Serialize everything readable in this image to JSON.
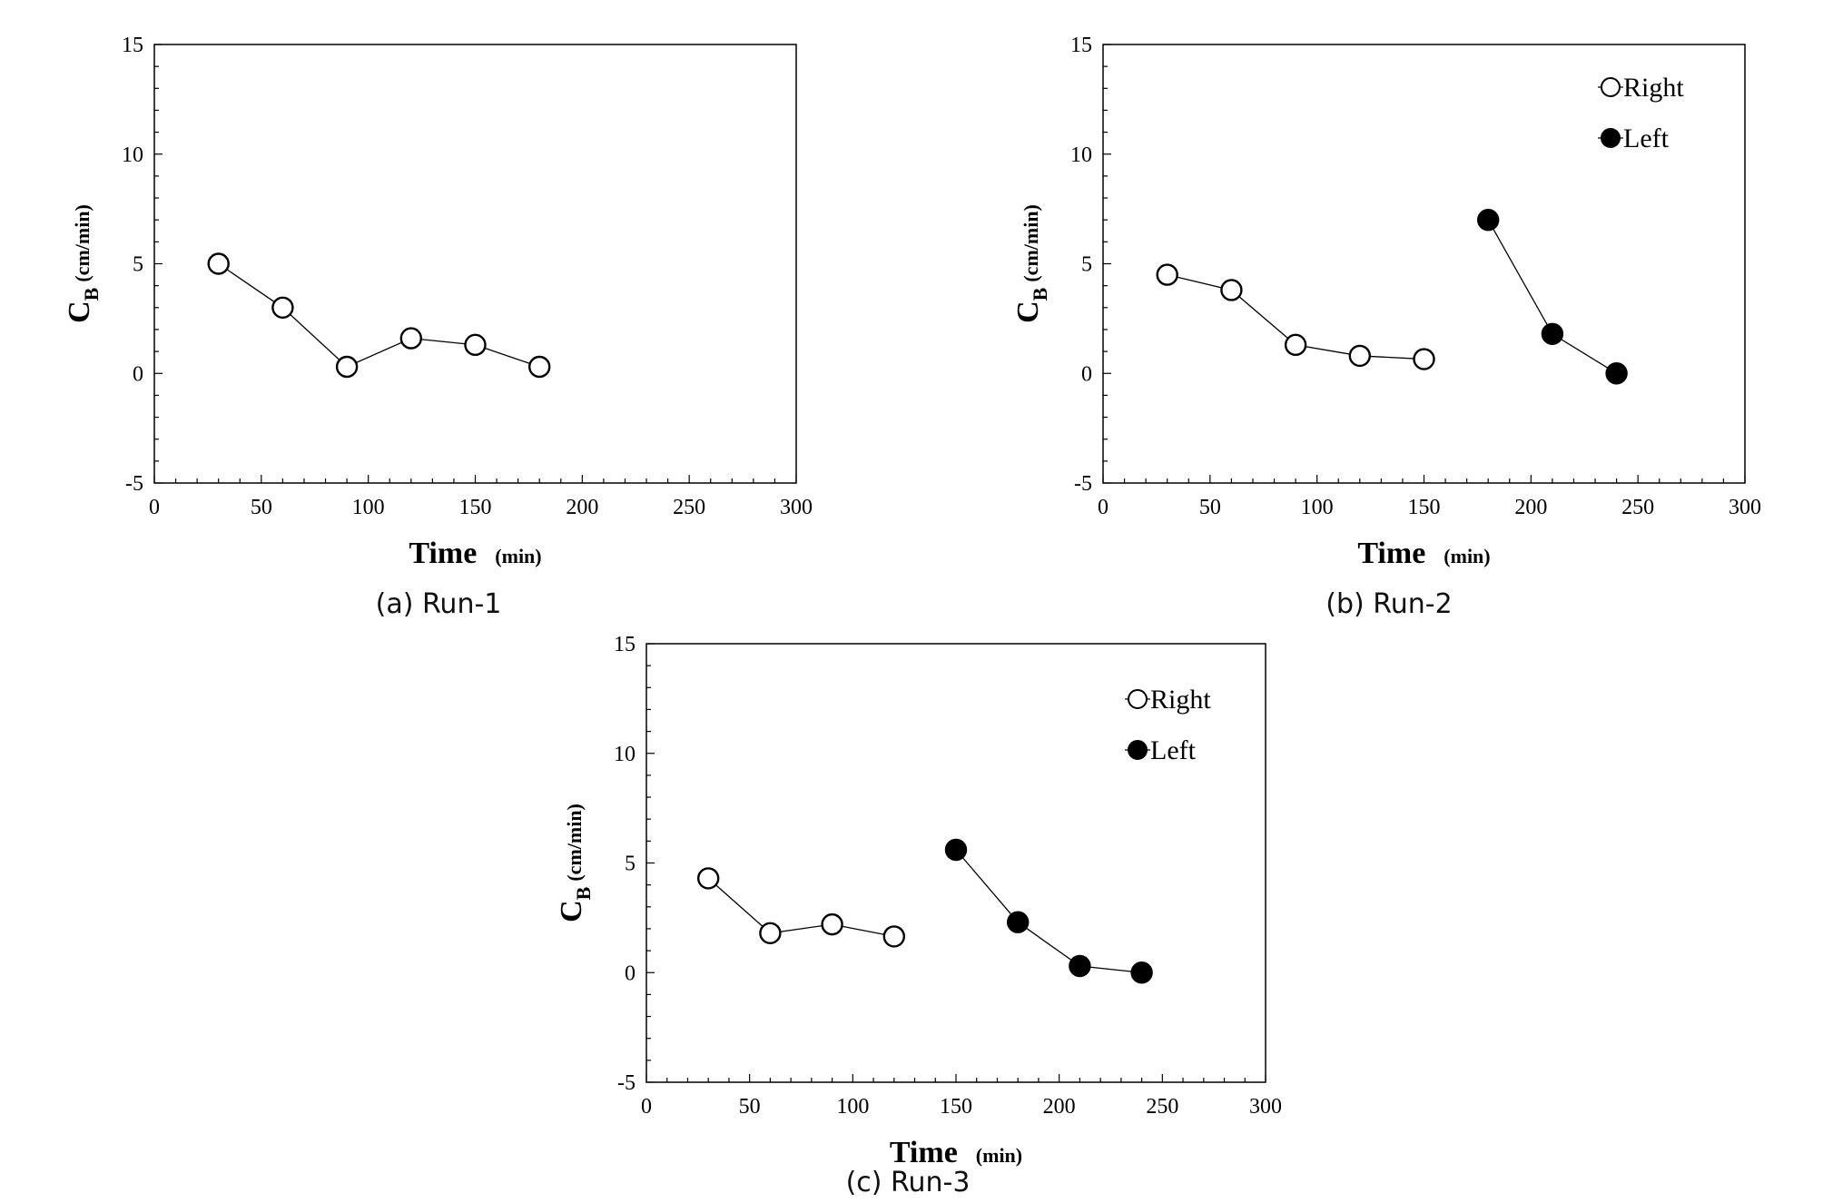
{
  "figure": {
    "xtick_labels": [
      "0",
      "50",
      "100",
      "150",
      "200",
      "250",
      "300"
    ],
    "ytick_labels": [
      "-5",
      "0",
      "5",
      "10",
      "15"
    ]
  },
  "chart_data": [
    {
      "type": "line",
      "caption": "(a) Run-1",
      "xlabel": "Time",
      "xlabel_unit": "(min)",
      "ylabel_main": "C",
      "ylabel_sub": "B",
      "ylabel_unit": "(cm/min)",
      "xlim": [
        0,
        300
      ],
      "ylim": [
        -5,
        15
      ],
      "grid": false,
      "legend": null,
      "series": [
        {
          "marker": "open-circle",
          "x": [
            30,
            60,
            90,
            120,
            150,
            180
          ],
          "y": [
            5.0,
            3.0,
            0.3,
            1.6,
            1.3,
            0.3
          ]
        }
      ]
    },
    {
      "type": "line",
      "caption": "(b) Run-2",
      "xlabel": "Time",
      "xlabel_unit": "(min)",
      "ylabel_main": "C",
      "ylabel_sub": "B",
      "ylabel_unit": "(cm/min)",
      "xlim": [
        0,
        300
      ],
      "ylim": [
        -5,
        15
      ],
      "grid": false,
      "legend": "top-right",
      "series": [
        {
          "name": "Right",
          "marker": "open-circle",
          "x": [
            30,
            60,
            90,
            120,
            150
          ],
          "y": [
            4.5,
            3.8,
            1.3,
            0.8,
            0.65
          ]
        },
        {
          "name": "Left",
          "marker": "filled-circle",
          "x": [
            180,
            210,
            240
          ],
          "y": [
            7.0,
            1.8,
            0.0
          ]
        }
      ]
    },
    {
      "type": "line",
      "caption": "(c) Run-3",
      "xlabel": "Time",
      "xlabel_unit": "(min)",
      "ylabel_main": "C",
      "ylabel_sub": "B",
      "ylabel_unit": "(cm/min)",
      "xlim": [
        0,
        300
      ],
      "ylim": [
        -5,
        15
      ],
      "grid": false,
      "legend": "top-right",
      "series": [
        {
          "name": "Right",
          "marker": "open-circle",
          "x": [
            30,
            60,
            90,
            120
          ],
          "y": [
            4.3,
            1.8,
            2.2,
            1.65
          ]
        },
        {
          "name": "Left",
          "marker": "filled-circle",
          "x": [
            150,
            180,
            210,
            240
          ],
          "y": [
            5.6,
            2.3,
            0.3,
            0.0
          ]
        }
      ]
    }
  ]
}
